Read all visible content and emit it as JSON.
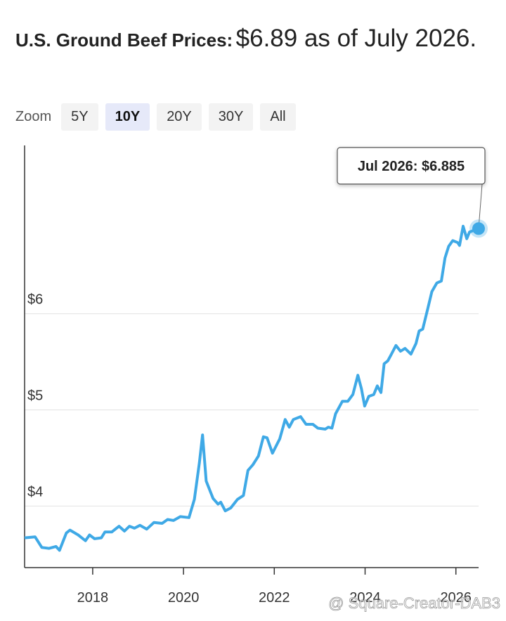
{
  "chart_data": {
    "type": "line",
    "title_lead": "U.S. Ground Beef Prices:",
    "title_rest": "$6.89 as of July 2026.",
    "zoom_label": "Zoom",
    "zoom_buttons": [
      "5Y",
      "10Y",
      "20Y",
      "30Y",
      "All"
    ],
    "zoom_selected": "10Y",
    "tooltip": "Jul 2026: $6.885",
    "watermark": "@ Square-Creator-DAB3",
    "color": "#3fa9e6",
    "x": [
      2016.5,
      2016.73,
      2016.88,
      2017.04,
      2017.19,
      2017.27,
      2017.42,
      2017.5,
      2017.68,
      2017.84,
      2017.93,
      2018.04,
      2018.19,
      2018.27,
      2018.42,
      2018.58,
      2018.7,
      2018.81,
      2018.92,
      2019.04,
      2019.19,
      2019.35,
      2019.53,
      2019.65,
      2019.78,
      2019.93,
      2020.12,
      2020.24,
      2020.35,
      2020.42,
      2020.5,
      2020.65,
      2020.76,
      2020.82,
      2020.92,
      2021.04,
      2021.19,
      2021.32,
      2021.42,
      2021.53,
      2021.65,
      2021.76,
      2021.84,
      2021.96,
      2022.12,
      2022.24,
      2022.33,
      2022.42,
      2022.58,
      2022.7,
      2022.85,
      2022.96,
      2023.12,
      2023.19,
      2023.27,
      2023.35,
      2023.5,
      2023.62,
      2023.73,
      2023.84,
      2023.92,
      2023.99,
      2024.08,
      2024.19,
      2024.27,
      2024.35,
      2024.42,
      2024.5,
      2024.58,
      2024.68,
      2024.78,
      2024.88,
      2025.01,
      2025.12,
      2025.19,
      2025.27,
      2025.38,
      2025.47,
      2025.58,
      2025.68,
      2025.76,
      2025.84,
      2025.93,
      2026.04,
      2026.08,
      2026.16,
      2026.24,
      2026.3,
      2026.5
    ],
    "values": [
      3.67,
      3.68,
      3.57,
      3.56,
      3.58,
      3.54,
      3.72,
      3.75,
      3.7,
      3.64,
      3.7,
      3.66,
      3.67,
      3.73,
      3.73,
      3.79,
      3.74,
      3.79,
      3.77,
      3.8,
      3.76,
      3.83,
      3.82,
      3.86,
      3.85,
      3.89,
      3.88,
      4.07,
      4.45,
      4.74,
      4.26,
      4.08,
      4.02,
      4.04,
      3.95,
      3.98,
      4.07,
      4.11,
      4.37,
      4.43,
      4.52,
      4.72,
      4.71,
      4.55,
      4.7,
      4.9,
      4.82,
      4.9,
      4.93,
      4.85,
      4.85,
      4.81,
      4.8,
      4.82,
      4.81,
      4.96,
      5.09,
      5.09,
      5.16,
      5.36,
      5.22,
      5.04,
      5.14,
      5.16,
      5.25,
      5.18,
      5.48,
      5.51,
      5.58,
      5.67,
      5.61,
      5.64,
      5.58,
      5.69,
      5.82,
      5.84,
      6.05,
      6.23,
      6.32,
      6.34,
      6.58,
      6.7,
      6.76,
      6.74,
      6.71,
      6.91,
      6.78,
      6.85,
      6.885
    ],
    "xlim": [
      2016.5,
      2026.5
    ],
    "xticks": [
      2018,
      2020,
      2022,
      2024,
      2026
    ],
    "ylim": [
      3.36,
      7.75
    ],
    "yticks": [
      {
        "value": 4,
        "label": "$4"
      },
      {
        "value": 5,
        "label": "$5"
      },
      {
        "value": 6,
        "label": "$6"
      }
    ],
    "grid": true
  }
}
